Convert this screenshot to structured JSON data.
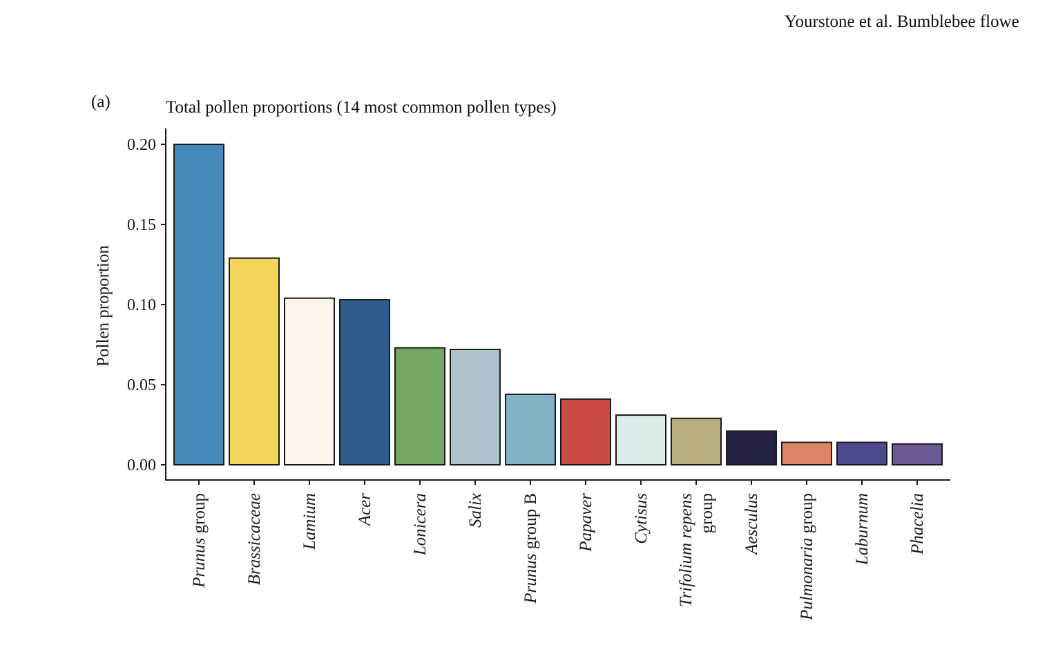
{
  "header": {
    "running_head": "Yourstone et al. Bumblebee flowe"
  },
  "panel": {
    "label": "(a)"
  },
  "chart_data": {
    "type": "bar",
    "title": "Total pollen proportions (14 most common pollen types)",
    "xlabel": "",
    "ylabel": "Pollen proportion",
    "ylim": [
      0,
      0.21
    ],
    "yticks": [
      0.0,
      0.05,
      0.1,
      0.15,
      0.2
    ],
    "ytick_labels": [
      "0.00",
      "0.05",
      "0.10",
      "0.15",
      "0.20"
    ],
    "grid": false,
    "legend": "none",
    "categories": [
      "Prunus group",
      "Brassicaceae",
      "Lamium",
      "Acer",
      "Lonicera",
      "Salix",
      "Prunus group B",
      "Papaver",
      "Cytisus",
      "Trifolium repens group",
      "Aesculus",
      "Pulmonaria group",
      "Laburnum",
      "Phacelia"
    ],
    "category_labels": [
      {
        "lines": [
          [
            {
              "t": "Prunus",
              "i": true
            },
            {
              "t": " group",
              "i": false
            }
          ]
        ]
      },
      {
        "lines": [
          [
            {
              "t": "Brassicaceae",
              "i": true
            }
          ]
        ]
      },
      {
        "lines": [
          [
            {
              "t": "Lamium",
              "i": true
            }
          ]
        ]
      },
      {
        "lines": [
          [
            {
              "t": "Acer",
              "i": true
            }
          ]
        ]
      },
      {
        "lines": [
          [
            {
              "t": "Lonicera",
              "i": true
            }
          ]
        ]
      },
      {
        "lines": [
          [
            {
              "t": "Salix",
              "i": true
            }
          ]
        ]
      },
      {
        "lines": [
          [
            {
              "t": "Prunus",
              "i": true
            },
            {
              "t": " group B",
              "i": false
            }
          ]
        ]
      },
      {
        "lines": [
          [
            {
              "t": "Papaver",
              "i": true
            }
          ]
        ]
      },
      {
        "lines": [
          [
            {
              "t": "Cytisus",
              "i": true
            }
          ]
        ]
      },
      {
        "lines": [
          [
            {
              "t": "Trifolium repens",
              "i": true
            }
          ],
          [
            {
              "t": "group",
              "i": false
            }
          ]
        ]
      },
      {
        "lines": [
          [
            {
              "t": "Aesculus",
              "i": true
            }
          ]
        ]
      },
      {
        "lines": [
          [
            {
              "t": "Pulmonaria",
              "i": true
            },
            {
              "t": " group",
              "i": false
            }
          ]
        ]
      },
      {
        "lines": [
          [
            {
              "t": "Laburnum",
              "i": true
            }
          ]
        ]
      },
      {
        "lines": [
          [
            {
              "t": "Phacelia",
              "i": true
            }
          ]
        ]
      }
    ],
    "values": [
      0.2,
      0.129,
      0.104,
      0.103,
      0.073,
      0.072,
      0.044,
      0.041,
      0.031,
      0.029,
      0.021,
      0.014,
      0.014,
      0.013
    ],
    "colors": [
      "#448ABC",
      "#F2D55A",
      "#FDF5EA",
      "#2E5D8D",
      "#74A561",
      "#AFC3CD",
      "#82B2C5",
      "#CB4C47",
      "#DAEBEA",
      "#B7AE7D",
      "#232245",
      "#DC8566",
      "#4A4A8C",
      "#6C5993"
    ],
    "edge_color": "#1a1a1a"
  }
}
